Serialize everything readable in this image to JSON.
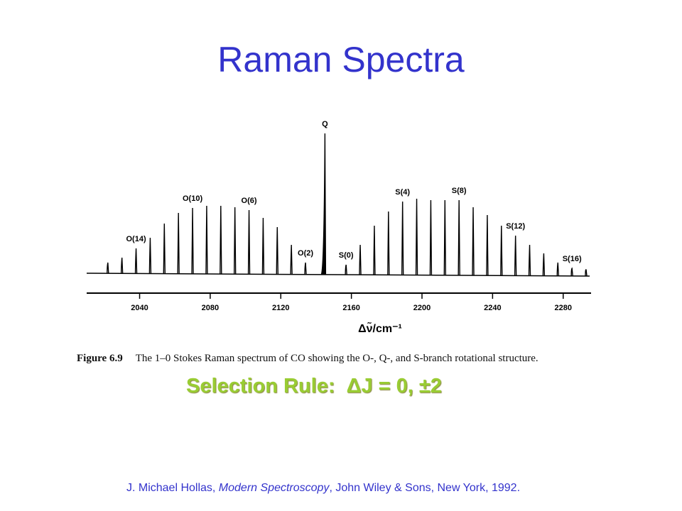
{
  "title": "Raman Spectra",
  "chart_data": {
    "type": "stick-spectrum",
    "x_label": "Δν̃/cm⁻¹",
    "xlim": [
      2010,
      2295
    ],
    "xticks": [
      2040,
      2080,
      2120,
      2160,
      2200,
      2240,
      2280
    ],
    "ylim": [
      0,
      200
    ],
    "color": "#000000",
    "x": [
      2022,
      2030,
      2038,
      2046,
      2054,
      2062,
      2070,
      2078,
      2086,
      2094,
      2102,
      2110,
      2118,
      2126,
      2134,
      2145,
      2157,
      2165,
      2173,
      2181,
      2189,
      2197,
      2205,
      2213,
      2221,
      2229,
      2237,
      2245,
      2253,
      2261,
      2269,
      2277,
      2285,
      2293
    ],
    "values": [
      15,
      22,
      35,
      50,
      70,
      85,
      92,
      95,
      95,
      93,
      89,
      78,
      65,
      40,
      15,
      197,
      12,
      40,
      67,
      87,
      101,
      105,
      103,
      103,
      103,
      93,
      82,
      67,
      53,
      40,
      28,
      15,
      7,
      5
    ],
    "peak_labels": [
      {
        "text": "O(14)",
        "x": 2038
      },
      {
        "text": "O(10)",
        "x": 2070
      },
      {
        "text": "O(6)",
        "x": 2102
      },
      {
        "text": "O(2)",
        "x": 2134
      },
      {
        "text": "Q",
        "x": 2145
      },
      {
        "text": "S(0)",
        "x": 2157
      },
      {
        "text": "S(4)",
        "x": 2189
      },
      {
        "text": "S(8)",
        "x": 2221
      },
      {
        "text": "S(12)",
        "x": 2253
      },
      {
        "text": "S(16)",
        "x": 2285
      }
    ]
  },
  "caption": {
    "label": "Figure 6.9",
    "text": "The 1–0 Stokes Raman spectrum of CO showing the O-, Q-, and S-branch rotational structure."
  },
  "selection_rule": "Selection Rule:  ΔJ = 0, ±2",
  "citation": {
    "author": "J. Michael Hollas, ",
    "book": "Modern Spectroscopy",
    "publisher": ", John Wiley & Sons, New York, 1992."
  }
}
